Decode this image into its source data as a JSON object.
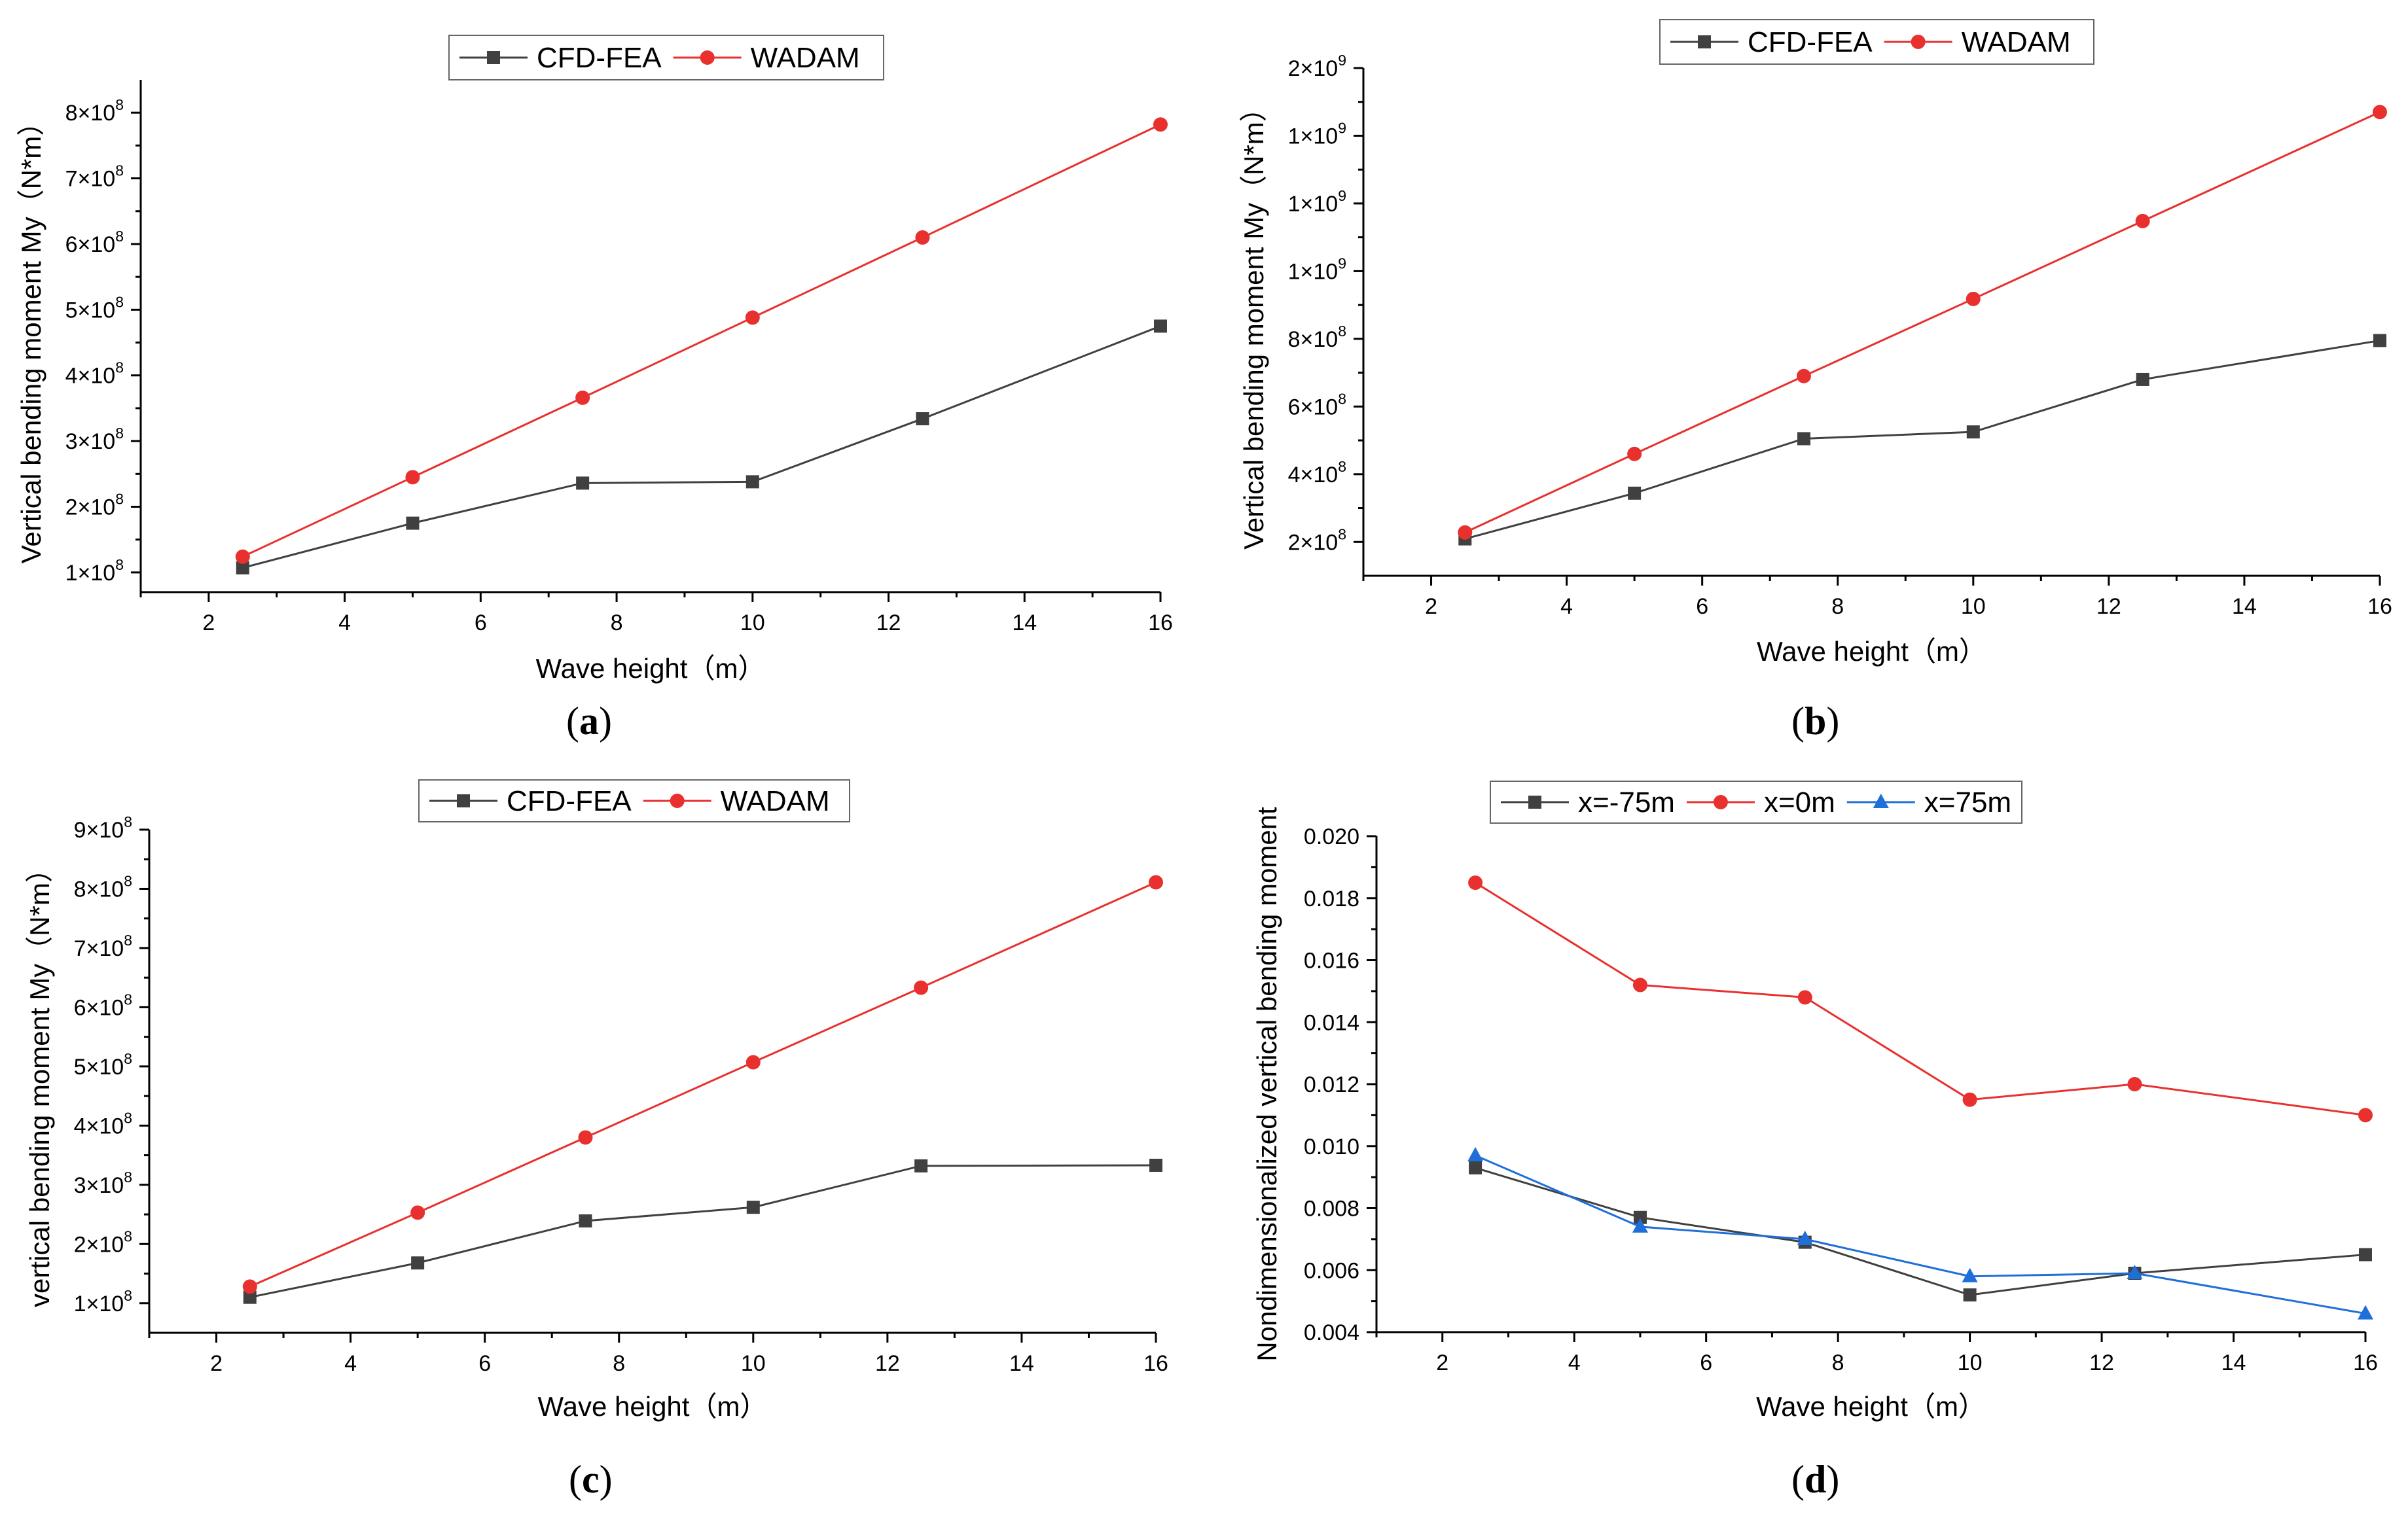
{
  "figure": {
    "panel_labels": [
      "a",
      "b",
      "c",
      "d"
    ]
  },
  "colors": {
    "cfd_fea": "#404040",
    "wadam": "#e8312f",
    "x_neg75": "#404040",
    "x_0": "#e8312f",
    "x_75": "#1e6fd9",
    "axis": "#000000"
  },
  "chart_data": [
    {
      "id": "a",
      "type": "line",
      "ylabel": "Vertical bending moment My（N*m）",
      "xlabel": "Wave height（m）",
      "xlim": [
        1,
        16
      ],
      "ylim": [
        70000000,
        850000000
      ],
      "x_ticks": [
        2,
        4,
        6,
        8,
        10,
        12,
        14,
        16
      ],
      "x_tick_labels": [
        "2",
        "4",
        "6",
        "8",
        "10",
        "12",
        "14",
        "16"
      ],
      "y_ticks": [
        100000000,
        200000000,
        300000000,
        400000000,
        500000000,
        600000000,
        700000000,
        800000000
      ],
      "y_tick_labels": [
        {
          "mant": "1×10",
          "exp": "8"
        },
        {
          "mant": "2×10",
          "exp": "8"
        },
        {
          "mant": "3×10",
          "exp": "8"
        },
        {
          "mant": "4×10",
          "exp": "8"
        },
        {
          "mant": "5×10",
          "exp": "8"
        },
        {
          "mant": "6×10",
          "exp": "8"
        },
        {
          "mant": "7×10",
          "exp": "8"
        },
        {
          "mant": "8×10",
          "exp": "8"
        }
      ],
      "x": [
        2.5,
        5,
        7.5,
        10,
        12.5,
        16
      ],
      "series": [
        {
          "name": "CFD-FEA",
          "marker": "square",
          "color_key": "cfd_fea",
          "values": [
            107000000,
            175000000,
            236000000,
            238000000,
            334000000,
            475000000
          ]
        },
        {
          "name": "WADAM",
          "marker": "circle",
          "color_key": "wadam",
          "values": [
            124000000,
            245000000,
            366000000,
            488000000,
            610000000,
            782000000
          ]
        }
      ],
      "legend": "top-center"
    },
    {
      "id": "b",
      "type": "line",
      "ylabel": "Vertical bending moment My（N*m）",
      "xlabel": "Wave height（m）",
      "xlim": [
        1,
        16
      ],
      "ylim": [
        100000000,
        1600000000
      ],
      "x_ticks": [
        2,
        4,
        6,
        8,
        10,
        12,
        14,
        16
      ],
      "x_tick_labels": [
        "2",
        "4",
        "6",
        "8",
        "10",
        "12",
        "14",
        "16"
      ],
      "y_ticks": [
        200000000,
        400000000,
        600000000,
        800000000,
        1000000000,
        1200000000,
        1400000000,
        1600000000
      ],
      "y_tick_labels": [
        {
          "mant": "2×10",
          "exp": "8"
        },
        {
          "mant": "4×10",
          "exp": "8"
        },
        {
          "mant": "6×10",
          "exp": "8"
        },
        {
          "mant": "8×10",
          "exp": "8"
        },
        {
          "mant": "1×10",
          "exp": "9"
        },
        {
          "mant": "1×10",
          "exp": "9"
        },
        {
          "mant": "1×10",
          "exp": "9"
        },
        {
          "mant": "2×10",
          "exp": "9"
        }
      ],
      "x": [
        2.5,
        5,
        7.5,
        10,
        12.5,
        16
      ],
      "series": [
        {
          "name": "CFD-FEA",
          "marker": "square",
          "color_key": "cfd_fea",
          "values": [
            209000000,
            344000000,
            505000000,
            525000000,
            680000000,
            795000000
          ]
        },
        {
          "name": "WADAM",
          "marker": "circle",
          "color_key": "wadam",
          "values": [
            228000000,
            460000000,
            690000000,
            918000000,
            1148000000,
            1470000000
          ]
        }
      ],
      "legend": "top-center"
    },
    {
      "id": "c",
      "type": "line",
      "ylabel": "vertical bending moment My（N*m）",
      "xlabel": "Wave height（m）",
      "xlim": [
        1,
        16
      ],
      "ylim": [
        50000000,
        900000000
      ],
      "x_ticks": [
        2,
        4,
        6,
        8,
        10,
        12,
        14,
        16
      ],
      "x_tick_labels": [
        "2",
        "4",
        "6",
        "8",
        "10",
        "12",
        "14",
        "16"
      ],
      "y_ticks": [
        100000000,
        200000000,
        300000000,
        400000000,
        500000000,
        600000000,
        700000000,
        800000000,
        900000000
      ],
      "y_tick_labels": [
        {
          "mant": "1×10",
          "exp": "8"
        },
        {
          "mant": "2×10",
          "exp": "8"
        },
        {
          "mant": "3×10",
          "exp": "8"
        },
        {
          "mant": "4×10",
          "exp": "8"
        },
        {
          "mant": "5×10",
          "exp": "8"
        },
        {
          "mant": "6×10",
          "exp": "8"
        },
        {
          "mant": "7×10",
          "exp": "8"
        },
        {
          "mant": "8×10",
          "exp": "8"
        },
        {
          "mant": "9×10",
          "exp": "8"
        }
      ],
      "x": [
        2.5,
        5,
        7.5,
        10,
        12.5,
        16
      ],
      "series": [
        {
          "name": "CFD-FEA",
          "marker": "square",
          "color_key": "cfd_fea",
          "values": [
            110000000,
            168000000,
            239000000,
            262000000,
            332000000,
            333000000
          ]
        },
        {
          "name": "WADAM",
          "marker": "circle",
          "color_key": "wadam",
          "values": [
            128000000,
            253000000,
            380000000,
            507000000,
            633000000,
            811000000
          ]
        }
      ],
      "legend": "top-center"
    },
    {
      "id": "d",
      "type": "line",
      "ylabel": "Nondimensionalized vertical bending moment",
      "xlabel": "Wave height（m）",
      "xlim": [
        1,
        16
      ],
      "ylim": [
        0.004,
        0.02
      ],
      "x_ticks": [
        2,
        4,
        6,
        8,
        10,
        12,
        14,
        16
      ],
      "x_tick_labels": [
        "2",
        "4",
        "6",
        "8",
        "10",
        "12",
        "14",
        "16"
      ],
      "y_ticks": [
        0.004,
        0.006,
        0.008,
        0.01,
        0.012,
        0.014,
        0.016,
        0.018,
        0.02
      ],
      "y_tick_labels": [
        {
          "mant": "0.004",
          "exp": ""
        },
        {
          "mant": "0.006",
          "exp": ""
        },
        {
          "mant": "0.008",
          "exp": ""
        },
        {
          "mant": "0.010",
          "exp": ""
        },
        {
          "mant": "0.012",
          "exp": ""
        },
        {
          "mant": "0.014",
          "exp": ""
        },
        {
          "mant": "0.016",
          "exp": ""
        },
        {
          "mant": "0.018",
          "exp": ""
        },
        {
          "mant": "0.020",
          "exp": ""
        }
      ],
      "x": [
        2.5,
        5,
        7.5,
        10,
        12.5,
        16
      ],
      "series": [
        {
          "name": "x=-75m",
          "marker": "square",
          "color_key": "x_neg75",
          "values": [
            0.0093,
            0.0077,
            0.0069,
            0.0052,
            0.0059,
            0.0065
          ]
        },
        {
          "name": "x=0m",
          "marker": "circle",
          "color_key": "x_0",
          "values": [
            0.0185,
            0.0152,
            0.0148,
            0.0115,
            0.012,
            0.011
          ]
        },
        {
          "name": "x=75m",
          "marker": "triangle",
          "color_key": "x_75",
          "values": [
            0.0097,
            0.0074,
            0.007,
            0.0058,
            0.0059,
            0.0046
          ]
        }
      ],
      "legend": "top-center"
    }
  ]
}
